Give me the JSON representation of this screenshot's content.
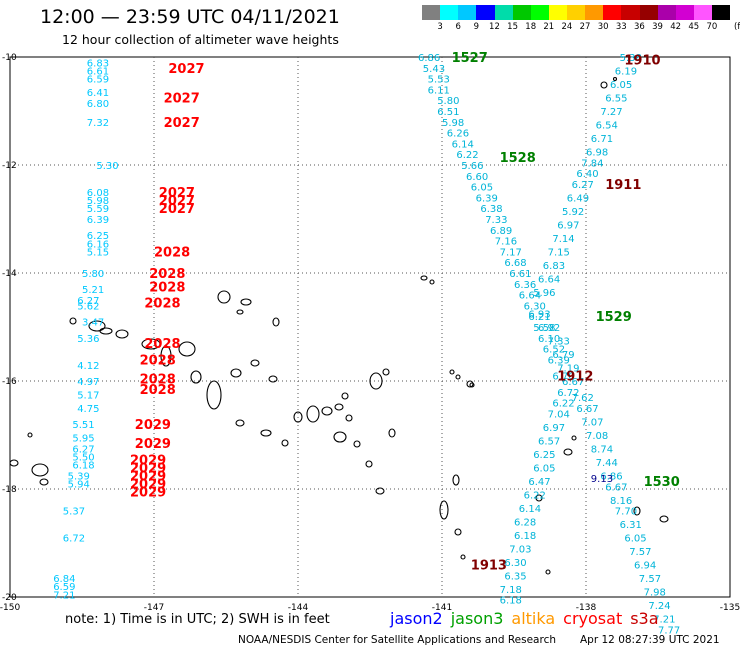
{
  "header": {
    "title": "12:00 — 23:59 UTC 04/11/2021",
    "subtitle": "12 hour collection of altimeter wave heights"
  },
  "colorbar": {
    "unit_label": "(ft)",
    "labels": [
      "3",
      "6",
      "9",
      "12",
      "15",
      "18",
      "21",
      "24",
      "27",
      "30",
      "33",
      "36",
      "39",
      "42",
      "45",
      "70"
    ],
    "colors": [
      "#808080",
      "#00ffff",
      "#00c8ff",
      "#0000ff",
      "#00dcaa",
      "#00c800",
      "#00ff00",
      "#ffff00",
      "#ffd000",
      "#ff9900",
      "#ff0000",
      "#c80000",
      "#960000",
      "#aa00aa",
      "#d200d2",
      "#ff55ff",
      "#000000"
    ]
  },
  "axes": {
    "x_ticks": [
      "-150",
      "-147",
      "-144",
      "-141",
      "-138",
      "-135"
    ],
    "y_ticks": [
      "-10",
      "-12",
      "-14",
      "-16",
      "-18",
      "-20"
    ]
  },
  "legend": {
    "items": [
      {
        "name": "jason2",
        "color": "#0000ff"
      },
      {
        "name": "jason3",
        "color": "#00a000"
      },
      {
        "name": "altika",
        "color": "#ff9900"
      },
      {
        "name": "cryosat",
        "color": "#ff0000"
      },
      {
        "name": "s3a",
        "color": "#c80000"
      }
    ]
  },
  "footer": {
    "note": "note:  1) Time is in UTC;  2) SWH is in feet",
    "credit": "NOAA/NESDIS Center for Satellite Applications and Research",
    "timestamp": "Apr 12 08:27:39 UTC 2021"
  },
  "map_data": {
    "time_labels": [
      {
        "text": "2027",
        "lon": -146.7,
        "lat": -10.2,
        "color": "#ff0000"
      },
      {
        "text": "2027",
        "lon": -146.8,
        "lat": -10.75,
        "color": "#ff0000"
      },
      {
        "text": "2027",
        "lon": -146.8,
        "lat": -11.2,
        "color": "#ff0000"
      },
      {
        "text": "2027",
        "lon": -146.9,
        "lat": -12.5,
        "color": "#ff0000"
      },
      {
        "text": "2027",
        "lon": -146.9,
        "lat": -12.65,
        "color": "#ff0000"
      },
      {
        "text": "2027",
        "lon": -146.9,
        "lat": -12.8,
        "color": "#ff0000"
      },
      {
        "text": "2028",
        "lon": -147.0,
        "lat": -13.6,
        "color": "#ff0000"
      },
      {
        "text": "2028",
        "lon": -147.1,
        "lat": -14.0,
        "color": "#ff0000"
      },
      {
        "text": "2028",
        "lon": -147.1,
        "lat": -14.25,
        "color": "#ff0000"
      },
      {
        "text": "2028",
        "lon": -147.2,
        "lat": -14.55,
        "color": "#ff0000"
      },
      {
        "text": "2028",
        "lon": -147.2,
        "lat": -15.3,
        "color": "#ff0000"
      },
      {
        "text": "2028",
        "lon": -147.3,
        "lat": -15.6,
        "color": "#ff0000"
      },
      {
        "text": "2028",
        "lon": -147.3,
        "lat": -15.95,
        "color": "#ff0000"
      },
      {
        "text": "2028",
        "lon": -147.3,
        "lat": -16.15,
        "color": "#ff0000"
      },
      {
        "text": "2029",
        "lon": -147.4,
        "lat": -16.8,
        "color": "#ff0000"
      },
      {
        "text": "2029",
        "lon": -147.4,
        "lat": -17.15,
        "color": "#ff0000"
      },
      {
        "text": "2029",
        "lon": -147.5,
        "lat": -17.45,
        "color": "#ff0000"
      },
      {
        "text": "2029",
        "lon": -147.5,
        "lat": -17.6,
        "color": "#ff0000"
      },
      {
        "text": "2029",
        "lon": -147.5,
        "lat": -17.75,
        "color": "#ff0000"
      },
      {
        "text": "2029",
        "lon": -147.5,
        "lat": -17.9,
        "color": "#ff0000"
      },
      {
        "text": "2029",
        "lon": -147.5,
        "lat": -18.05,
        "color": "#ff0000"
      },
      {
        "text": "1527",
        "lon": -140.8,
        "lat": -10.0,
        "color": "#008000"
      },
      {
        "text": "1528",
        "lon": -139.8,
        "lat": -11.85,
        "color": "#008000"
      },
      {
        "text": "1529",
        "lon": -137.8,
        "lat": -14.8,
        "color": "#008000"
      },
      {
        "text": "1530",
        "lon": -136.8,
        "lat": -17.85,
        "color": "#008000"
      },
      {
        "text": "1910",
        "lon": -137.2,
        "lat": -10.05,
        "color": "#800000"
      },
      {
        "text": "1911",
        "lon": -137.6,
        "lat": -12.35,
        "color": "#800000"
      },
      {
        "text": "1912",
        "lon": -138.6,
        "lat": -15.9,
        "color": "#800000"
      },
      {
        "text": "1913",
        "lon": -140.4,
        "lat": -19.4,
        "color": "#800000"
      }
    ],
    "swh_columns": [
      {
        "color": "#00b4d8",
        "points": [
          [
            "6.86",
            -141.5,
            -10.0
          ],
          [
            "5.43",
            -141.4,
            -10.2
          ],
          [
            "5.53",
            -141.3,
            -10.4
          ],
          [
            "6.11",
            -141.3,
            -10.6
          ],
          [
            "5.80",
            -141.1,
            -10.8
          ],
          [
            "6.51",
            -141.1,
            -11.0
          ],
          [
            "5.98",
            -141.0,
            -11.2
          ],
          [
            "6.26",
            -140.9,
            -11.4
          ],
          [
            "6.14",
            -140.8,
            -11.6
          ],
          [
            "6.22",
            -140.7,
            -11.8
          ],
          [
            "5.66",
            -140.6,
            -12.0
          ],
          [
            "6.60",
            -140.5,
            -12.2
          ],
          [
            "6.05",
            -140.4,
            -12.4
          ],
          [
            "6.39",
            -140.3,
            -12.6
          ],
          [
            "6.38",
            -140.2,
            -12.8
          ],
          [
            "7.33",
            -140.1,
            -13.0
          ],
          [
            "6.89",
            -140.0,
            -13.2
          ],
          [
            "7.16",
            -139.9,
            -13.4
          ],
          [
            "7.17",
            -139.8,
            -13.6
          ],
          [
            "6.68",
            -139.7,
            -13.8
          ],
          [
            "6.61",
            -139.6,
            -14.0
          ],
          [
            "6.36",
            -139.5,
            -14.2
          ],
          [
            "6.64",
            -139.4,
            -14.4
          ],
          [
            "6.30",
            -139.3,
            -14.6
          ],
          [
            "6.21",
            -139.2,
            -14.8
          ],
          [
            "5.58",
            -139.1,
            -15.0
          ],
          [
            "6.10",
            -139.0,
            -15.2
          ],
          [
            "6.52",
            -138.9,
            -15.4
          ],
          [
            "6.39",
            -138.8,
            -15.6
          ],
          [
            "6.70",
            -138.7,
            -15.9
          ],
          [
            "6.72",
            -138.6,
            -16.2
          ],
          [
            "6.22",
            -138.7,
            -16.4
          ],
          [
            "7.04",
            -138.8,
            -16.6
          ],
          [
            "6.97",
            -138.9,
            -16.85
          ],
          [
            "6.57",
            -139.0,
            -17.1
          ],
          [
            "6.25",
            -139.1,
            -17.35
          ],
          [
            "6.05",
            -139.1,
            -17.6
          ],
          [
            "6.47",
            -139.2,
            -17.85
          ],
          [
            "6.22",
            -139.3,
            -18.1
          ],
          [
            "6.14",
            -139.4,
            -18.35
          ],
          [
            "6.28",
            -139.5,
            -18.6
          ],
          [
            "6.18",
            -139.5,
            -18.85
          ],
          [
            "7.03",
            -139.6,
            -19.1
          ],
          [
            "6.30",
            -139.7,
            -19.35
          ],
          [
            "6.35",
            -139.7,
            -19.6
          ],
          [
            "7.18",
            -139.8,
            -19.85
          ],
          [
            "6.18",
            -139.8,
            -20.05
          ]
        ]
      },
      {
        "color": "#00b4d8",
        "points": [
          [
            "5.38",
            -137.3,
            -10.0
          ],
          [
            "6.19",
            -137.4,
            -10.25
          ],
          [
            "6.05",
            -137.5,
            -10.5
          ],
          [
            "6.55",
            -137.6,
            -10.75
          ],
          [
            "7.27",
            -137.7,
            -11.0
          ],
          [
            "6.54",
            -137.8,
            -11.25
          ],
          [
            "6.71",
            -137.9,
            -11.5
          ],
          [
            "6.98",
            -138.0,
            -11.75
          ],
          [
            "7.84",
            -138.1,
            -11.95
          ],
          [
            "6.40",
            -138.2,
            -12.15
          ],
          [
            "6.27",
            -138.3,
            -12.35
          ],
          [
            "6.49",
            -138.4,
            -12.6
          ],
          [
            "5.92",
            -138.5,
            -12.85
          ],
          [
            "6.97",
            -138.6,
            -13.1
          ],
          [
            "7.14",
            -138.7,
            -13.35
          ],
          [
            "7.15",
            -138.8,
            -13.6
          ],
          [
            "6.83",
            -138.9,
            -13.85
          ],
          [
            "6.64",
            -139.0,
            -14.1
          ],
          [
            "5.96",
            -139.1,
            -14.35
          ],
          [
            "6.93",
            -139.2,
            -14.75
          ],
          [
            "6.92",
            -139.0,
            -15.0
          ],
          [
            "7.33",
            -138.8,
            -15.25
          ],
          [
            "6.79",
            -138.7,
            -15.5
          ],
          [
            "7.19",
            -138.6,
            -15.75
          ],
          [
            "6.67",
            -138.5,
            -16.0
          ],
          [
            "7.62",
            -138.3,
            -16.3
          ],
          [
            "6.67",
            -138.2,
            -16.5
          ],
          [
            "7.07",
            -138.1,
            -16.75
          ],
          [
            "7.08",
            -138.0,
            -17.0
          ],
          [
            "8.74",
            -137.9,
            -17.25
          ],
          [
            "7.44",
            -137.8,
            -17.5
          ],
          [
            "6.86",
            -137.7,
            -17.75
          ],
          [
            "6.67",
            -137.6,
            -17.95
          ],
          [
            "8.16",
            -137.5,
            -18.2
          ],
          [
            "7.70",
            -137.4,
            -18.4
          ],
          [
            "6.31",
            -137.3,
            -18.65
          ],
          [
            "6.05",
            -137.2,
            -18.9
          ],
          [
            "7.57",
            -137.1,
            -19.15
          ],
          [
            "6.94",
            -137.0,
            -19.4
          ],
          [
            "7.57",
            -136.9,
            -19.65
          ],
          [
            "7.98",
            -136.8,
            -19.9
          ],
          [
            "7.24",
            -136.7,
            -20.15
          ],
          [
            "7.21",
            -136.6,
            -20.4
          ],
          [
            "7.77",
            -136.5,
            -20.6
          ]
        ]
      },
      {
        "color": "#00c8ff",
        "points": [
          [
            "6.83",
            -148.4,
            -10.1
          ],
          [
            "6.61",
            -148.4,
            -10.25
          ],
          [
            "6.59",
            -148.4,
            -10.4
          ],
          [
            "6.41",
            -148.4,
            -10.65
          ],
          [
            "6.80",
            -148.4,
            -10.85
          ],
          [
            "7.32",
            -148.4,
            -11.2
          ],
          [
            "5.30",
            -148.2,
            -12.0
          ],
          [
            "6.08",
            -148.4,
            -12.5
          ],
          [
            "5.98",
            -148.4,
            -12.65
          ],
          [
            "5.59",
            -148.4,
            -12.8
          ],
          [
            "6.39",
            -148.4,
            -13.0
          ],
          [
            "6.25",
            -148.4,
            -13.3
          ],
          [
            "6.16",
            -148.4,
            -13.45
          ],
          [
            "5.15",
            -148.4,
            -13.6
          ],
          [
            "5.80",
            -148.5,
            -14.0
          ],
          [
            "5.21",
            -148.5,
            -14.3
          ],
          [
            "6.27",
            -148.6,
            -14.5
          ],
          [
            "5.62",
            -148.6,
            -14.6
          ],
          [
            "3.47",
            -148.5,
            -14.9
          ],
          [
            "5.36",
            -148.6,
            -15.2
          ],
          [
            "4.12",
            -148.6,
            -15.7
          ],
          [
            "4.97",
            -148.6,
            -16.0
          ],
          [
            "5.17",
            -148.6,
            -16.25
          ],
          [
            "4.75",
            -148.6,
            -16.5
          ],
          [
            "5.51",
            -148.7,
            -16.8
          ],
          [
            "5.95",
            -148.7,
            -17.05
          ],
          [
            "6.27",
            -148.7,
            -17.25
          ],
          [
            "5.50",
            -148.7,
            -17.4
          ],
          [
            "6.18",
            -148.7,
            -17.55
          ],
          [
            "5.39",
            -148.8,
            -17.75
          ],
          [
            "5.94",
            -148.8,
            -17.9
          ],
          [
            "5.37",
            -148.9,
            -18.4
          ],
          [
            "6.72",
            -148.9,
            -18.9
          ],
          [
            "6.84",
            -149.1,
            -19.65
          ],
          [
            "6.59",
            -149.1,
            -19.8
          ],
          [
            "7.21",
            -149.1,
            -19.95
          ]
        ]
      },
      {
        "color": "#00008b",
        "points": [
          [
            "9.13",
            -137.9,
            -17.8
          ]
        ]
      }
    ]
  }
}
